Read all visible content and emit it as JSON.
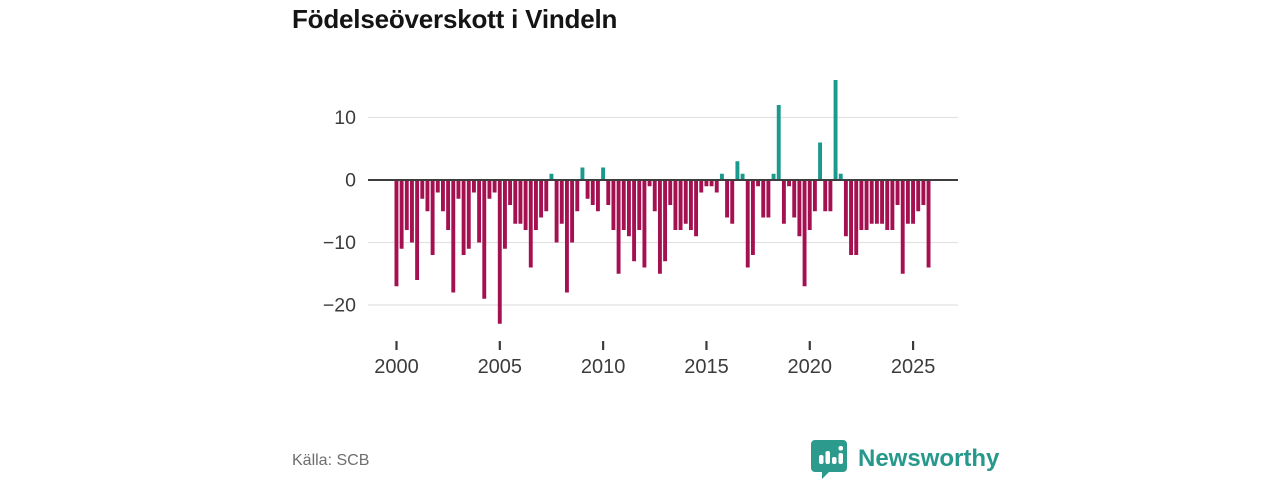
{
  "title": "Födelseöverskott i Vindeln",
  "source": "Källa: SCB",
  "brand": {
    "name": "Newsworthy",
    "logo_icon": "bar-chart-speech-bubble-icon"
  },
  "colors": {
    "negative_bar": "#a51050",
    "positive_bar": "#199a8c",
    "zero_axis": "#3d3d3d",
    "grid": "#e2e2e2",
    "tick_text": "#3c3c3c",
    "muted_text": "#6e6e6e",
    "brand_teal": "#27998c",
    "title_text": "#141414"
  },
  "chart_data": {
    "type": "bar",
    "title": "Födelseöverskott i Vindeln",
    "frequency": "quarterly",
    "x_start_year": 2000,
    "x_tick_labels": [
      "2000",
      "2005",
      "2010",
      "2015",
      "2020",
      "2025"
    ],
    "y_ticks": [
      10,
      0,
      -10,
      -20
    ],
    "y_tick_labels": [
      "10",
      "0",
      "−10",
      "−20"
    ],
    "ylim": [
      -24,
      17
    ],
    "grid": true,
    "legend": "none",
    "series": [
      {
        "name": "Födelseöverskott",
        "values": [
          -17,
          -11,
          -8,
          -10,
          -16,
          -3,
          -5,
          -12,
          -2,
          -5,
          -8,
          -18,
          -3,
          -12,
          -11,
          -2,
          -10,
          -19,
          -3,
          -2,
          -23,
          -11,
          -4,
          -7,
          -7,
          -8,
          -14,
          -8,
          -6,
          -5,
          1,
          -10,
          -7,
          -18,
          -10,
          -5,
          2,
          -3,
          -4,
          -5,
          2,
          -4,
          -8,
          -15,
          -8,
          -9,
          -13,
          -8,
          -14,
          -1,
          -5,
          -15,
          -13,
          -4,
          -8,
          -8,
          -7,
          -8,
          -9,
          -2,
          -1,
          -1,
          -2,
          1,
          -6,
          -7,
          3,
          1,
          -14,
          -12,
          -1,
          -6,
          -6,
          1,
          12,
          -7,
          -1,
          -6,
          -9,
          -17,
          -8,
          -5,
          6,
          -5,
          -5,
          16,
          1,
          -9,
          -12,
          -12,
          -8,
          -8,
          -7,
          -7,
          -7,
          -8,
          -8,
          -4,
          -15,
          -7,
          -7,
          -5,
          -4,
          -14
        ]
      }
    ]
  }
}
